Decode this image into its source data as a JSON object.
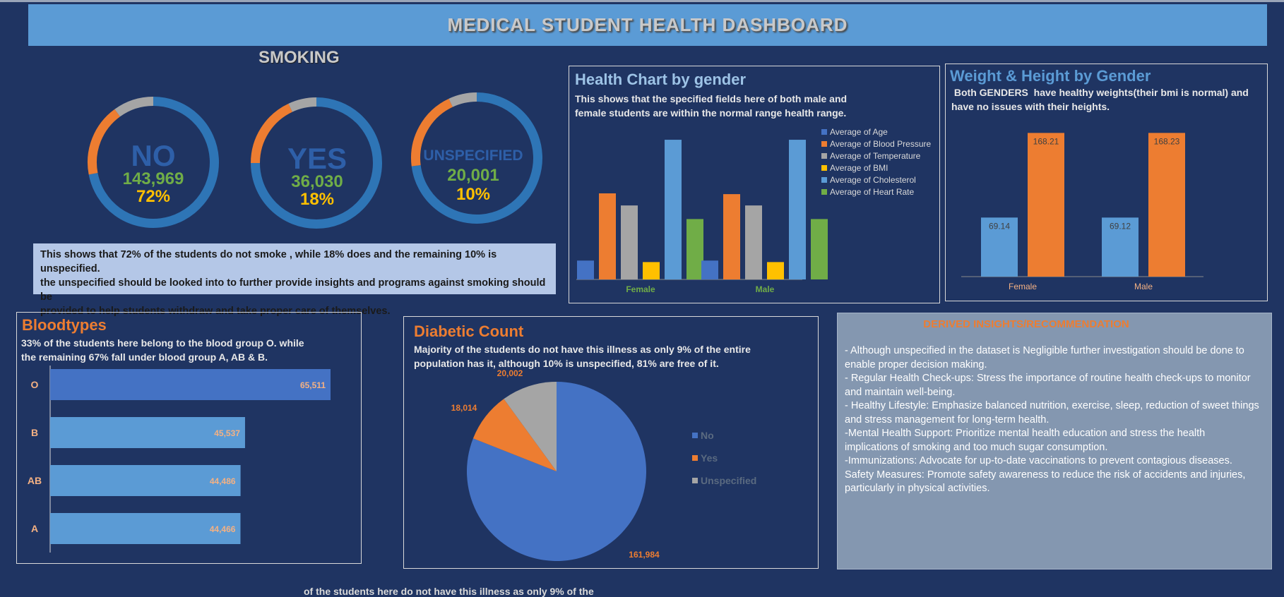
{
  "header": {
    "title": "MEDICAL STUDENT HEALTH DASHBOARD"
  },
  "smoking": {
    "title": "SMOKING",
    "donuts": [
      {
        "label": "NO",
        "count": "143,969",
        "percent": "72%",
        "fraction": 0.72
      },
      {
        "label": "YES",
        "count": "36,030",
        "percent": "18%",
        "fraction": 0.18
      },
      {
        "label": "UNSPECIFIED",
        "count": "20,001",
        "percent": "10%",
        "fraction": 0.1
      }
    ],
    "note_lines": [
      "This shows that 72% of the students do not smoke , while 18% does and the remaining 10% is unspecified.",
      "the unspecified should be looked into to further provide insights and programs against  smoking should be",
      "provided to help students withdraw and take proper care of themselves."
    ],
    "colors": {
      "main": "#2e75b6",
      "second": "#ed7d31",
      "third": "#a5a5a5"
    }
  },
  "health": {
    "title": "Health Chart by gender",
    "desc_lines": [
      "This shows that the specified fields here of both male and",
      "female students are within the normal range health range."
    ]
  },
  "weight": {
    "title": "Weight & Height by Gender",
    "desc_lines": [
      " Both GENDERS  have healthy weights(their bmi is normal) and",
      "have no issues with their heights."
    ]
  },
  "blood": {
    "title": "Bloodtypes",
    "desc_lines": [
      "33% of the students here belong to the blood group O. while",
      "the remaining 67% fall under blood group A, AB & B."
    ]
  },
  "diabetic": {
    "title": "Diabetic Count",
    "desc_lines": [
      "Majority of the students do not have this illness as only 9% of the entire",
      "population has it, although 10% is unspecified, 81% are free of it."
    ]
  },
  "insights": {
    "title": "DERIVED INSIGHTS/RECOMMENDATION",
    "lines": [
      "- Although unspecified in the dataset is Negligible further investigation should be done to",
      "enable proper decision making.",
      "- Regular Health Check-ups: Stress the importance of routine health check-ups to monitor",
      "and maintain well-being.",
      "- Healthy Lifestyle: Emphasize balanced nutrition, exercise, sleep, reduction of sweet things",
      "and stress management for long-term health.",
      "-Mental Health Support: Prioritize mental health education and stress the health",
      "implications of smoking and too much sugar consumption.",
      "-Immunizations: Advocate for up-to-date vaccinations to prevent contagious diseases.",
      "Safety Measures: Promote safety awareness to reduce the risk of accidents and injuries,",
      "particularly in physical activities."
    ]
  },
  "footer": {
    "partial_text": "of the students here do not have this illness as only 9% of the"
  },
  "chart_data": [
    {
      "type": "bar",
      "title": "Health Chart by gender",
      "categories": [
        "Female",
        "Male"
      ],
      "ylim": [
        0,
        200
      ],
      "series": [
        {
          "name": "Average of Age",
          "color": "#4472c4",
          "values": [
            25,
            25
          ]
        },
        {
          "name": "Average of Blood Pressure",
          "color": "#ed7d31",
          "values": [
            114,
            113
          ]
        },
        {
          "name": "Average of Temperature",
          "color": "#a5a5a5",
          "values": [
            98,
            98
          ]
        },
        {
          "name": "Average of BMI",
          "color": "#ffc000",
          "values": [
            23,
            23
          ]
        },
        {
          "name": "Average of Cholesterol",
          "color": "#5b9bd5",
          "values": [
            185,
            185
          ]
        },
        {
          "name": "Average of Heart Rate",
          "color": "#70ad47",
          "values": [
            80,
            80
          ]
        }
      ],
      "legend": "right"
    },
    {
      "type": "bar",
      "title": "Weight & Height by Gender",
      "categories": [
        "Female",
        "Male"
      ],
      "ylim": [
        0,
        190
      ],
      "series": [
        {
          "name": "Weight",
          "color": "#5b9bd5",
          "values": [
            69.14,
            69.12
          ],
          "labels": [
            "69.14",
            "69.12"
          ]
        },
        {
          "name": "Height",
          "color": "#ed7d31",
          "values": [
            168.21,
            168.23
          ],
          "labels": [
            "168.21",
            "168.23"
          ]
        }
      ]
    },
    {
      "type": "bar",
      "orientation": "horizontal",
      "title": "Bloodtypes",
      "categories": [
        "O",
        "B",
        "AB",
        "A"
      ],
      "values": [
        65511,
        45537,
        44486,
        44466
      ],
      "labels": [
        "65,511",
        "45,537",
        "44,486",
        "44,466"
      ],
      "xlim": [
        0,
        70000
      ]
    },
    {
      "type": "pie",
      "title": "Diabetic Count",
      "categories": [
        "No",
        "Yes",
        "Unspecified"
      ],
      "values": [
        161984,
        18014,
        20002
      ],
      "labels": [
        "161,984",
        "18,014",
        "20,002"
      ],
      "colors": [
        "#4472c4",
        "#ed7d31",
        "#a5a5a5"
      ],
      "legend": "right"
    }
  ]
}
